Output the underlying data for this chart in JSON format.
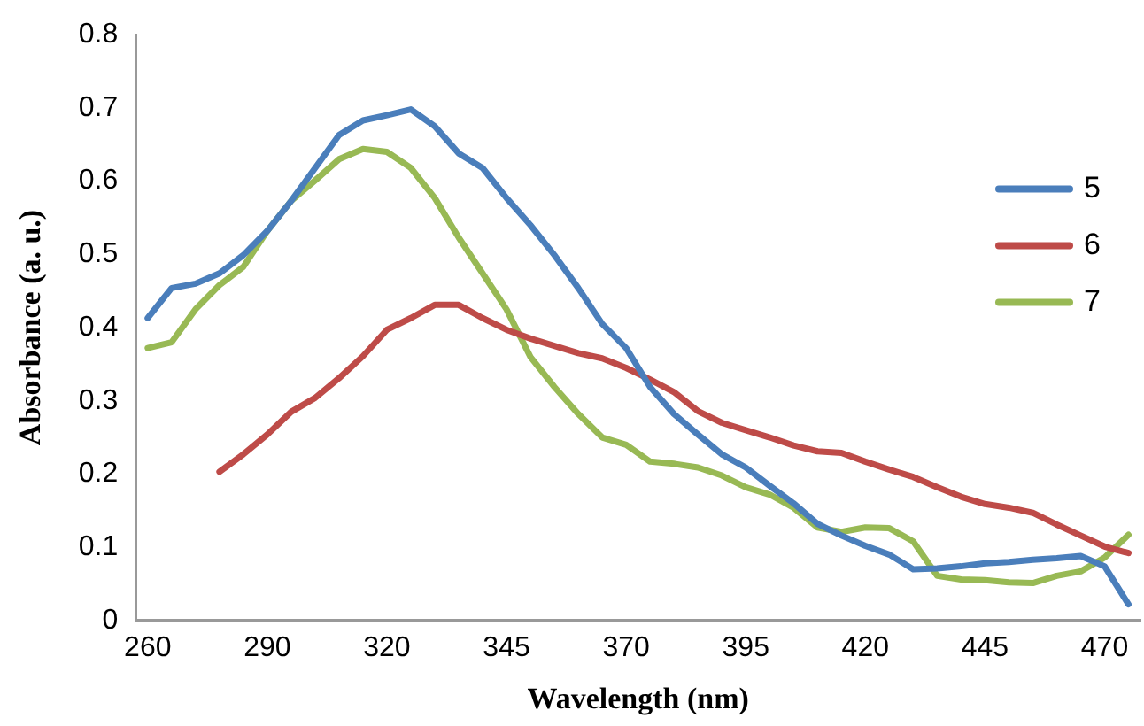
{
  "chart_data": {
    "type": "line",
    "xlabel": "Wavelength (nm)",
    "ylabel": "Absorbance (a. u.)",
    "categories": [
      "260",
      null,
      null,
      null,
      null,
      "290",
      null,
      null,
      null,
      null,
      "320",
      null,
      null,
      null,
      null,
      "345",
      null,
      null,
      null,
      null,
      "370",
      null,
      null,
      null,
      null,
      "395",
      null,
      null,
      null,
      null,
      "420",
      null,
      null,
      null,
      null,
      "445",
      null,
      null,
      null,
      null,
      "470",
      null
    ],
    "series": [
      {
        "name": "5",
        "color": "#4a7ebb",
        "values": [
          0.413,
          0.454,
          0.46,
          0.474,
          0.499,
          0.532,
          0.573,
          0.618,
          0.663,
          0.683,
          0.69,
          0.698,
          0.675,
          0.638,
          0.618,
          0.577,
          0.54,
          0.499,
          0.454,
          0.405,
          0.372,
          0.319,
          0.282,
          0.254,
          0.227,
          0.209,
          0.184,
          0.16,
          0.132,
          0.116,
          0.102,
          0.09,
          0.07,
          0.071,
          0.074,
          0.078,
          0.08,
          0.083,
          0.085,
          0.088,
          0.074,
          0.022
        ]
      },
      {
        "name": "6",
        "color": "#be4b48",
        "values": [
          null,
          null,
          null,
          0.203,
          0.227,
          0.254,
          0.285,
          0.304,
          0.331,
          0.361,
          0.397,
          0.413,
          0.431,
          0.431,
          0.413,
          0.397,
          0.385,
          0.375,
          0.365,
          0.358,
          0.345,
          0.329,
          0.312,
          0.286,
          0.27,
          0.26,
          0.25,
          0.239,
          0.231,
          0.229,
          0.217,
          0.206,
          0.196,
          0.182,
          0.169,
          0.159,
          0.154,
          0.147,
          0.131,
          0.116,
          0.101,
          0.092
        ]
      },
      {
        "name": "7",
        "color": "#98b954",
        "values": [
          0.372,
          0.38,
          0.425,
          0.458,
          0.483,
          0.532,
          0.573,
          0.601,
          0.63,
          0.644,
          0.64,
          0.618,
          0.577,
          0.523,
          0.474,
          0.425,
          0.36,
          0.319,
          0.282,
          0.25,
          0.24,
          0.217,
          0.214,
          0.209,
          0.198,
          0.182,
          0.172,
          0.154,
          0.127,
          0.121,
          0.127,
          0.126,
          0.108,
          0.061,
          0.056,
          0.055,
          0.052,
          0.051,
          0.061,
          0.067,
          0.086,
          0.117
        ]
      }
    ],
    "ylim": [
      0,
      0.8
    ],
    "yticks": [
      0,
      0.1,
      0.2,
      0.3,
      0.4,
      0.5,
      0.6,
      0.7,
      0.8
    ],
    "grid": false,
    "legend": "right",
    "marker": "none",
    "line_style": "solid"
  }
}
